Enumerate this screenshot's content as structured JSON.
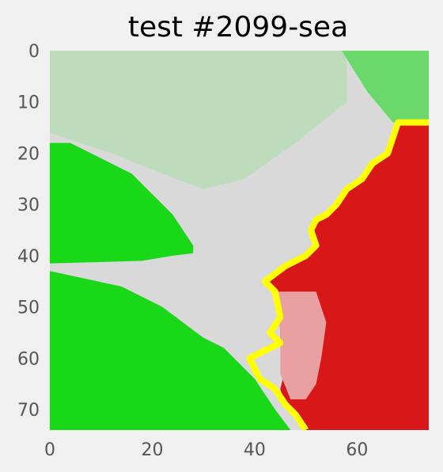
{
  "chart_data": {
    "type": "heatmap",
    "title": "test #2099-sea",
    "xlabel": "",
    "ylabel": "",
    "xlim": [
      0,
      74
    ],
    "ylim": [
      74,
      0
    ],
    "xticks": [
      0,
      20,
      40,
      60
    ],
    "yticks": [
      0,
      10,
      20,
      30,
      40,
      50,
      60,
      70
    ],
    "grid": false,
    "colors": {
      "background": "#f0f0f0",
      "pale_green": "#bcdcbc",
      "light_gray": "#d9d9d9",
      "bright_green": "#18d818",
      "light_green_corner": "#6ad86a",
      "red": "#d81818",
      "pale_red": "#e8a0a0",
      "boundary_yellow": "#ffff00"
    },
    "regions": [
      {
        "name": "pale green land",
        "color": "#bcdcbc",
        "polygon": [
          [
            0,
            0
          ],
          [
            58,
            0
          ],
          [
            58,
            10
          ],
          [
            48,
            18
          ],
          [
            38,
            25
          ],
          [
            30,
            27
          ],
          [
            22,
            24
          ],
          [
            12,
            20
          ],
          [
            0,
            16
          ]
        ]
      },
      {
        "name": "light green corner",
        "color": "#6ad86a",
        "polygon": [
          [
            57,
            0
          ],
          [
            74,
            0
          ],
          [
            74,
            14
          ],
          [
            67,
            14
          ],
          [
            62,
            8
          ]
        ]
      },
      {
        "name": "bright green upper",
        "color": "#18d818",
        "polygon": [
          [
            0,
            18
          ],
          [
            4,
            18
          ],
          [
            10,
            21
          ],
          [
            16,
            24
          ],
          [
            20,
            28
          ],
          [
            24,
            32
          ],
          [
            26,
            35
          ],
          [
            28,
            38
          ],
          [
            28,
            39.5
          ],
          [
            24,
            40
          ],
          [
            18,
            41
          ],
          [
            0,
            41.5
          ]
        ]
      },
      {
        "name": "bright green lower",
        "color": "#18d818",
        "polygon": [
          [
            0,
            43
          ],
          [
            14,
            46
          ],
          [
            22,
            50
          ],
          [
            26,
            53
          ],
          [
            30,
            56
          ],
          [
            34,
            58
          ],
          [
            37,
            61
          ],
          [
            40,
            64
          ],
          [
            42,
            67
          ],
          [
            44,
            70
          ],
          [
            47,
            74
          ],
          [
            0,
            74
          ]
        ]
      },
      {
        "name": "red region",
        "color": "#d81818",
        "polygon": [
          [
            74,
            14
          ],
          [
            68,
            14
          ],
          [
            67,
            17
          ],
          [
            66,
            20
          ],
          [
            63,
            22
          ],
          [
            61,
            25
          ],
          [
            58,
            27
          ],
          [
            56,
            30
          ],
          [
            54,
            32
          ],
          [
            52,
            33
          ],
          [
            51,
            35
          ],
          [
            52,
            38
          ],
          [
            50,
            40
          ],
          [
            46,
            42
          ],
          [
            42,
            45
          ],
          [
            44,
            47
          ],
          [
            45,
            52
          ],
          [
            45,
            57
          ],
          [
            46,
            62
          ],
          [
            45,
            66
          ],
          [
            46,
            69
          ],
          [
            48,
            71
          ],
          [
            50,
            74
          ],
          [
            74,
            74
          ]
        ]
      },
      {
        "name": "pale red stripe",
        "color": "#e8a0a0",
        "polygon": [
          [
            44,
            47
          ],
          [
            52,
            47
          ],
          [
            54,
            53
          ],
          [
            53,
            60
          ],
          [
            52,
            65
          ],
          [
            50,
            68
          ],
          [
            47,
            68
          ],
          [
            45,
            63
          ],
          [
            45,
            55
          ]
        ]
      }
    ],
    "boundary": {
      "color": "#ffff00",
      "points": [
        [
          74,
          14
        ],
        [
          68,
          14
        ],
        [
          67,
          17
        ],
        [
          66,
          20
        ],
        [
          63,
          22
        ],
        [
          61,
          25
        ],
        [
          58,
          27
        ],
        [
          56,
          30
        ],
        [
          54,
          32
        ],
        [
          52,
          33
        ],
        [
          51,
          35
        ],
        [
          52,
          38
        ],
        [
          50,
          40
        ],
        [
          46,
          42
        ],
        [
          42,
          45
        ],
        [
          44,
          47
        ],
        [
          45,
          52
        ],
        [
          43,
          55
        ],
        [
          45,
          57
        ],
        [
          39,
          60
        ],
        [
          41,
          64
        ],
        [
          44,
          66
        ],
        [
          46,
          69
        ],
        [
          48,
          71
        ],
        [
          50,
          74
        ]
      ]
    }
  }
}
